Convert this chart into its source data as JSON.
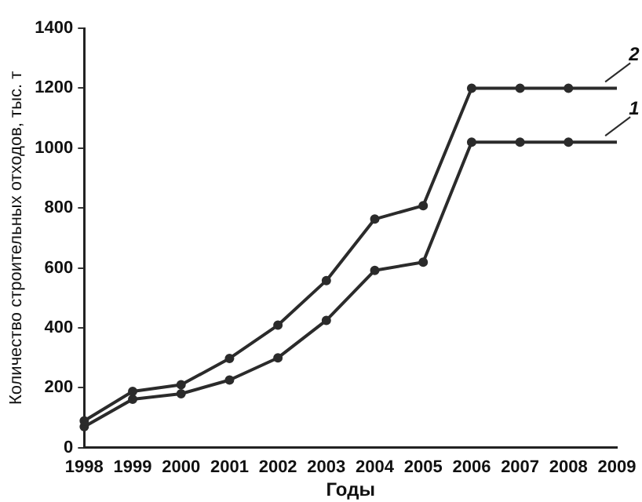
{
  "chart_data": {
    "type": "line",
    "xlabel": "Годы",
    "ylabel": "Количество строительных отходов, тыс. т",
    "categories": [
      "1998",
      "1999",
      "2000",
      "2001",
      "2002",
      "2003",
      "2004",
      "2005",
      "2006",
      "2007",
      "2008",
      "2009"
    ],
    "series": [
      {
        "name": "2",
        "color": "#2b2b2b",
        "values": [
          90,
          188,
          210,
          298,
          409,
          558,
          763,
          808,
          1200,
          1200,
          1200,
          1200
        ]
      },
      {
        "name": "1",
        "color": "#2b2b2b",
        "values": [
          70,
          162,
          180,
          226,
          300,
          425,
          592,
          619,
          1020,
          1020,
          1020,
          1020
        ]
      }
    ],
    "ylim": [
      0,
      1400
    ],
    "yticks": [
      0,
      200,
      400,
      600,
      800,
      1000,
      1200,
      1400
    ],
    "grid": false,
    "legend": false,
    "marker": "circle",
    "line_style": "solid"
  }
}
